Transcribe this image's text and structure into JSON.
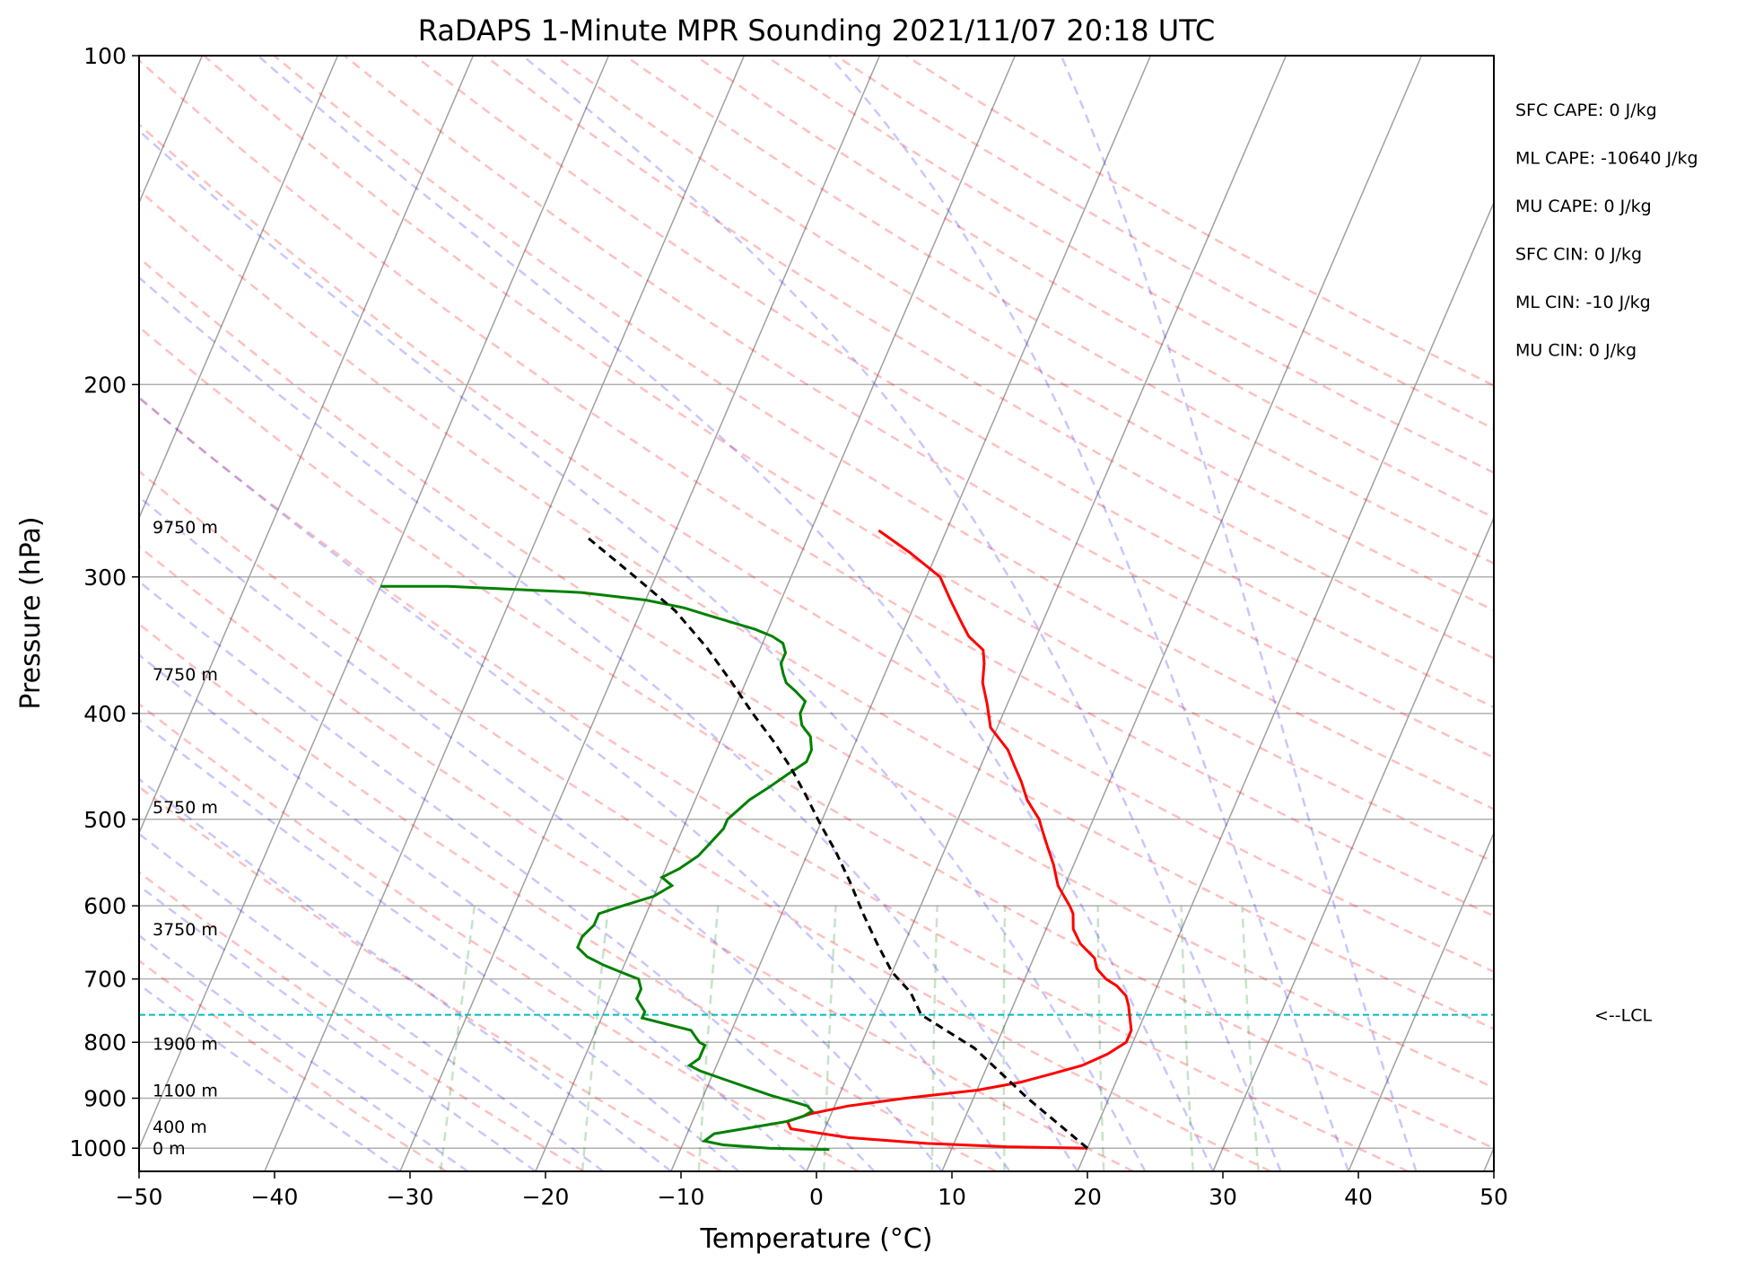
{
  "chart_data": {
    "type": "line",
    "title": "RaDAPS 1-Minute MPR Sounding 2021/11/07 20:18 UTC",
    "xlabel": "Temperature (°C)",
    "ylabel": "Pressure (hPa)",
    "xlim": [
      -50,
      50
    ],
    "ylim": [
      1050,
      100
    ],
    "y_scale": "log",
    "grid": true,
    "x_ticks": [
      "−50",
      "−40",
      "−30",
      "−20",
      "−10",
      "0",
      "10",
      "20",
      "30",
      "40",
      "50"
    ],
    "y_ticks": [
      "100",
      "200",
      "300",
      "400",
      "500",
      "600",
      "700",
      "800",
      "900",
      "1000"
    ],
    "height_labels": [
      {
        "p": 1000,
        "label": "0 m"
      },
      {
        "p": 955,
        "label": "400 m"
      },
      {
        "p": 885,
        "label": "1100 m"
      },
      {
        "p": 802,
        "label": "1900 m"
      },
      {
        "p": 630,
        "label": "3750 m"
      },
      {
        "p": 487,
        "label": "5750 m"
      },
      {
        "p": 368,
        "label": "7750 m"
      },
      {
        "p": 270,
        "label": "9750 m"
      }
    ],
    "annotations": [
      "SFC CAPE: 0 J/kg",
      "ML CAPE: -10640 J/kg",
      "MU CAPE: 0 J/kg",
      "SFC CIN: 0 J/kg",
      "ML CIN: -10 J/kg",
      "MU CIN: 0 J/kg"
    ],
    "lcl": {
      "p": 755,
      "label": "<--LCL"
    },
    "series": [
      {
        "color": "#ff0000",
        "points": [
          [
            20.0,
            1000
          ],
          [
            14.0,
            997
          ],
          [
            8.0,
            990
          ],
          [
            2.0,
            978
          ],
          [
            -2.5,
            960
          ],
          [
            -3.0,
            945
          ],
          [
            -1.5,
            930
          ],
          [
            1.0,
            915
          ],
          [
            5.0,
            900
          ],
          [
            10.0,
            885
          ],
          [
            13.0,
            870
          ],
          [
            15.0,
            855
          ],
          [
            17.0,
            840
          ],
          [
            18.5,
            820
          ],
          [
            19.5,
            800
          ],
          [
            19.5,
            780
          ],
          [
            19.0,
            760
          ],
          [
            18.5,
            740
          ],
          [
            18.0,
            725
          ],
          [
            17.0,
            710
          ],
          [
            16.0,
            700
          ],
          [
            15.0,
            685
          ],
          [
            14.5,
            670
          ],
          [
            13.0,
            650
          ],
          [
            12.0,
            630
          ],
          [
            11.5,
            610
          ],
          [
            11.0,
            600
          ],
          [
            9.5,
            575
          ],
          [
            8.5,
            550
          ],
          [
            7.5,
            530
          ],
          [
            6.5,
            510
          ],
          [
            6.0,
            500
          ],
          [
            4.5,
            480
          ],
          [
            3.5,
            462
          ],
          [
            2.5,
            447
          ],
          [
            1.5,
            432
          ],
          [
            -0.5,
            412
          ],
          [
            -1.5,
            392
          ],
          [
            -2.5,
            375
          ],
          [
            -3.0,
            360
          ],
          [
            -3.5,
            350
          ],
          [
            -5.0,
            340
          ],
          [
            -6.0,
            330
          ],
          [
            -7.5,
            315
          ],
          [
            -9.0,
            300
          ],
          [
            -12.0,
            285
          ],
          [
            -15.0,
            272
          ]
        ]
      },
      {
        "color": "#008000",
        "points": [
          [
            1.0,
            1003
          ],
          [
            -3.5,
            1000
          ],
          [
            -7.0,
            993
          ],
          [
            -8.5,
            985
          ],
          [
            -8.0,
            970
          ],
          [
            -6.0,
            960
          ],
          [
            -4.0,
            950
          ],
          [
            -3.0,
            945
          ],
          [
            -2.0,
            935
          ],
          [
            -1.5,
            925
          ],
          [
            -2.0,
            915
          ],
          [
            -3.0,
            908
          ],
          [
            -5.0,
            895
          ],
          [
            -7.0,
            880
          ],
          [
            -9.0,
            865
          ],
          [
            -11.0,
            850
          ],
          [
            -12.0,
            840
          ],
          [
            -11.5,
            828
          ],
          [
            -11.5,
            818
          ],
          [
            -11.5,
            805
          ],
          [
            -12.0,
            800
          ],
          [
            -12.5,
            790
          ],
          [
            -13.0,
            780
          ],
          [
            -15.0,
            770
          ],
          [
            -17.0,
            760
          ],
          [
            -17.0,
            750
          ],
          [
            -17.5,
            740
          ],
          [
            -18.0,
            730
          ],
          [
            -18.0,
            715
          ],
          [
            -18.5,
            700
          ],
          [
            -20.0,
            690
          ],
          [
            -21.5,
            680
          ],
          [
            -23.0,
            668
          ],
          [
            -24.0,
            655
          ],
          [
            -24.0,
            640
          ],
          [
            -23.5,
            625
          ],
          [
            -23.5,
            610
          ],
          [
            -22.0,
            600
          ],
          [
            -20.0,
            588
          ],
          [
            -19.0,
            575
          ],
          [
            -20.0,
            565
          ],
          [
            -19.0,
            555
          ],
          [
            -18.0,
            540
          ],
          [
            -17.5,
            525
          ],
          [
            -17.0,
            510
          ],
          [
            -17.0,
            500
          ],
          [
            -16.5,
            490
          ],
          [
            -16.0,
            480
          ],
          [
            -15.0,
            468
          ],
          [
            -14.0,
            455
          ],
          [
            -13.0,
            443
          ],
          [
            -13.0,
            432
          ],
          [
            -13.5,
            420
          ],
          [
            -14.5,
            410
          ],
          [
            -15.0,
            400
          ],
          [
            -15.0,
            390
          ],
          [
            -16.0,
            382
          ],
          [
            -17.0,
            375
          ],
          [
            -17.5,
            368
          ],
          [
            -18.0,
            360
          ],
          [
            -18.0,
            352
          ],
          [
            -18.5,
            345
          ],
          [
            -19.5,
            340
          ],
          [
            -21.0,
            335
          ],
          [
            -23.0,
            330
          ],
          [
            -25.0,
            325
          ],
          [
            -27.0,
            320
          ],
          [
            -30.0,
            315
          ],
          [
            -35.0,
            310
          ],
          [
            -45.0,
            306
          ],
          [
            -50.0,
            306
          ]
        ]
      },
      {
        "color": "#000000",
        "dashed": true,
        "points": [
          [
            20.0,
            1000
          ],
          [
            14.0,
            900
          ],
          [
            8.5,
            810
          ],
          [
            3.5,
            755
          ],
          [
            2.0,
            720
          ],
          [
            0.0,
            690
          ],
          [
            -2.0,
            650
          ],
          [
            -4.0,
            610
          ],
          [
            -6.0,
            570
          ],
          [
            -8.0,
            535
          ],
          [
            -10.0,
            505
          ],
          [
            -12.0,
            475
          ],
          [
            -14.0,
            448
          ],
          [
            -16.0,
            425
          ],
          [
            -18.5,
            400
          ],
          [
            -21.0,
            375
          ],
          [
            -24.0,
            348
          ],
          [
            -27.5,
            322
          ],
          [
            -31.5,
            300
          ],
          [
            -36.5,
            275
          ]
        ]
      }
    ]
  }
}
